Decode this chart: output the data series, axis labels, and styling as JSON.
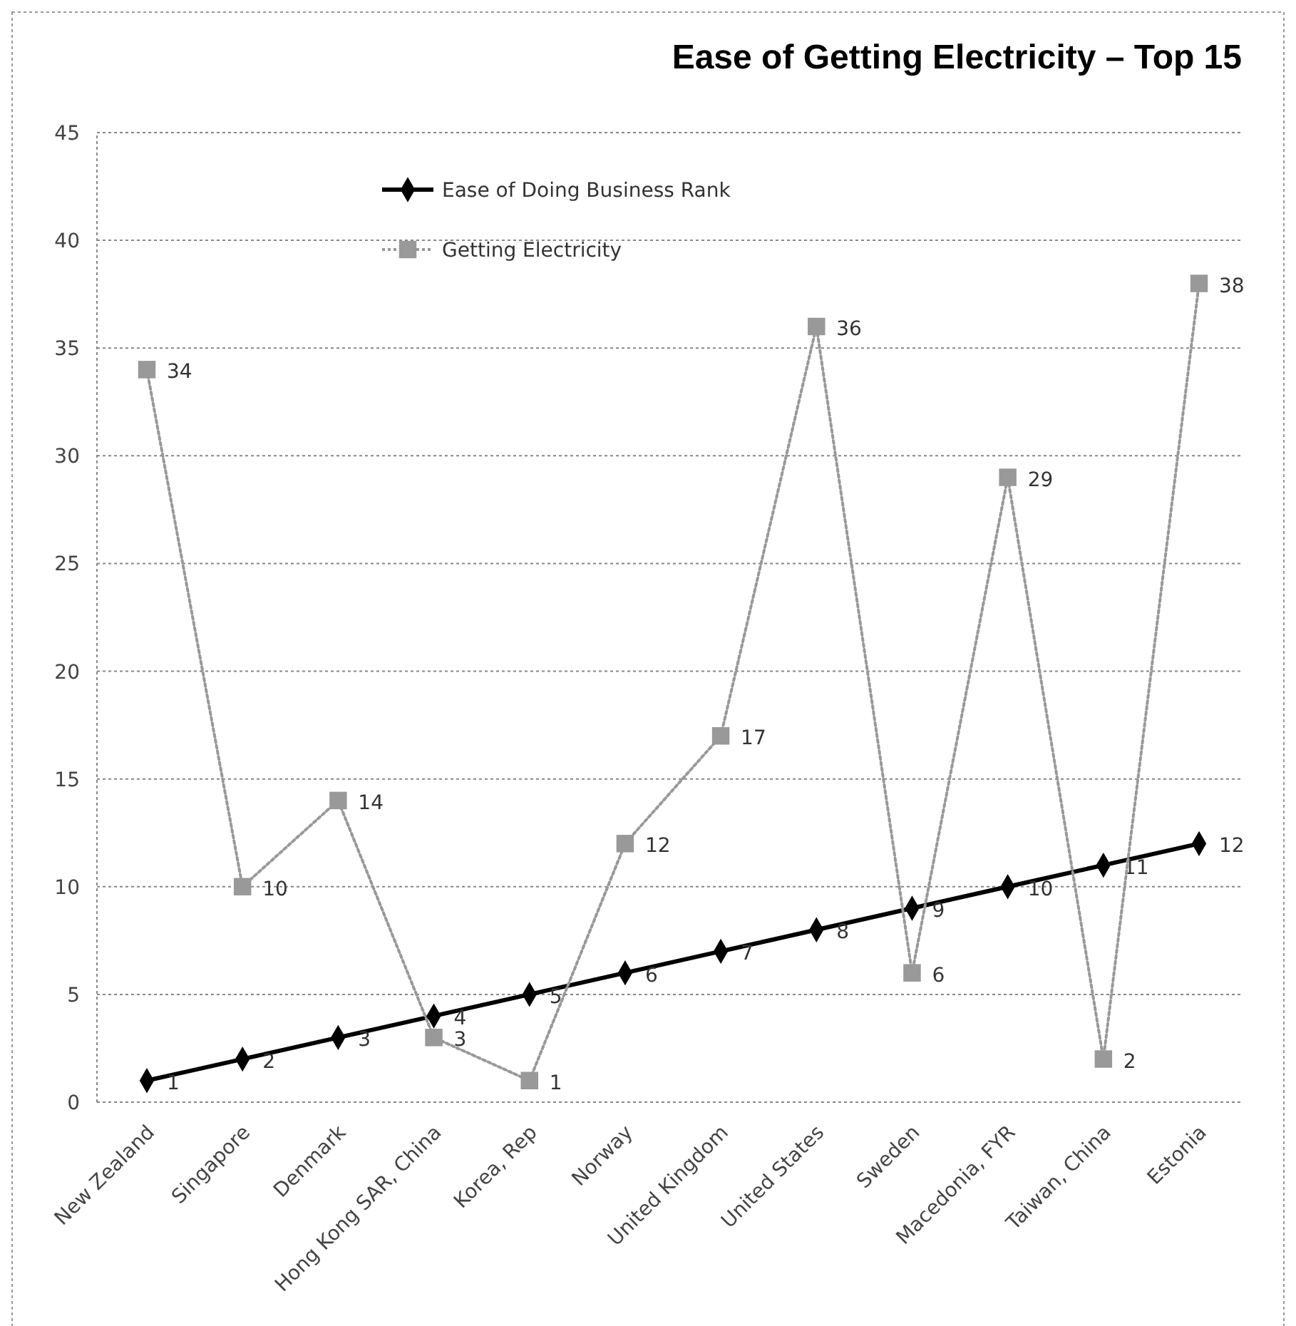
{
  "chart_data": {
    "type": "line",
    "title": "Ease of Getting Electricity – Top 15",
    "categories": [
      "New Zealand",
      "Singapore",
      "Denmark",
      "Hong Kong SAR, China",
      "Korea, Rep",
      "Norway",
      "United Kingdom",
      "United States",
      "Sweden",
      "Macedonia, FYR",
      "Taiwan, China",
      "Estonia"
    ],
    "series": [
      {
        "name": "Ease of Doing Business Rank",
        "color": "#000000",
        "marker": "diamond",
        "line_style": "solid",
        "values": [
          1,
          2,
          3,
          4,
          5,
          6,
          7,
          8,
          9,
          10,
          11,
          12
        ]
      },
      {
        "name": "Getting Electricity",
        "color": "#999999",
        "marker": "square",
        "line_style": "dotted",
        "values": [
          34,
          10,
          14,
          3,
          1,
          12,
          17,
          36,
          6,
          29,
          2,
          38
        ]
      }
    ],
    "ylim": [
      0,
      45
    ],
    "yticks": [
      0,
      5,
      10,
      15,
      20,
      25,
      30,
      35,
      40,
      45
    ],
    "grid": "y",
    "legend": "top left",
    "data_labels": true
  }
}
